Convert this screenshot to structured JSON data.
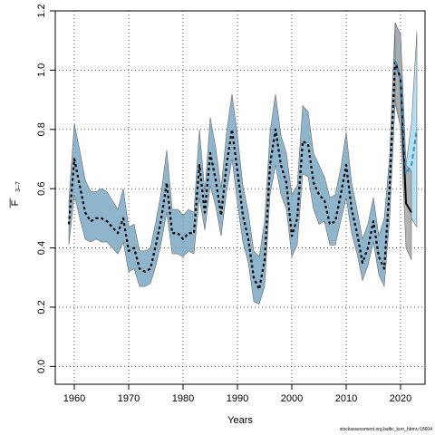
{
  "chart_data": {
    "type": "line",
    "xlabel": "Years",
    "ylabel": "F",
    "ylabel_bar": "—",
    "ylabel_sub": "3–7",
    "xlim": [
      1956.5,
      2024.5
    ],
    "ylim": [
      -0.06,
      1.2
    ],
    "x_ticks": [
      1960,
      1970,
      1980,
      1990,
      2000,
      2010,
      2020
    ],
    "y_ticks": [
      0.0,
      0.2,
      0.4,
      0.6,
      0.8,
      1.0,
      1.2
    ],
    "y_tick_labels": [
      "0.0",
      "0.2",
      "0.4",
      "0.6",
      "0.8",
      "1.0",
      "1.2"
    ],
    "grid": true,
    "colors": {
      "band_assessment": "#7ba8c4",
      "band_forecast": "#a9d8ee",
      "band_recent": "#a6a6a6",
      "line_assessment": "#000000",
      "line_recent": "#000000",
      "line_forecast": "#3a8fc0"
    },
    "series": [
      {
        "style": "band",
        "color_key": "band_assessment",
        "x": [
          1959,
          1960,
          1961,
          1962,
          1963,
          1964,
          1965,
          1966,
          1967,
          1968,
          1969,
          1970,
          1971,
          1972,
          1973,
          1974,
          1975,
          1976,
          1977,
          1978,
          1979,
          1980,
          1981,
          1982,
          1983,
          1984,
          1985,
          1986,
          1987,
          1988,
          1989,
          1990,
          1991,
          1992,
          1993,
          1994,
          1995,
          1996,
          1997,
          1998,
          1999,
          2000,
          2001,
          2002,
          2003,
          2004,
          2005,
          2006,
          2007,
          2008,
          2009,
          2010,
          2011,
          2012,
          2013,
          2014,
          2015,
          2016,
          2017,
          2018,
          2019,
          2020
        ],
        "upper": [
          0.56,
          0.82,
          0.73,
          0.63,
          0.59,
          0.59,
          0.6,
          0.59,
          0.56,
          0.53,
          0.6,
          0.47,
          0.48,
          0.39,
          0.39,
          0.4,
          0.49,
          0.59,
          0.73,
          0.53,
          0.53,
          0.51,
          0.53,
          0.52,
          0.8,
          0.59,
          0.84,
          0.74,
          0.6,
          0.79,
          0.92,
          0.78,
          0.61,
          0.52,
          0.39,
          0.37,
          0.49,
          0.79,
          0.92,
          0.78,
          0.72,
          0.58,
          0.61,
          0.88,
          0.86,
          0.72,
          0.68,
          0.64,
          0.57,
          0.58,
          0.67,
          0.79,
          0.62,
          0.53,
          0.43,
          0.48,
          0.57,
          0.44,
          0.5,
          0.71,
          1.16,
          1.12
        ],
        "lower": [
          0.41,
          0.58,
          0.5,
          0.43,
          0.42,
          0.43,
          0.42,
          0.42,
          0.4,
          0.38,
          0.42,
          0.32,
          0.33,
          0.27,
          0.27,
          0.28,
          0.34,
          0.42,
          0.52,
          0.38,
          0.38,
          0.37,
          0.39,
          0.38,
          0.57,
          0.46,
          0.61,
          0.54,
          0.44,
          0.59,
          0.7,
          0.55,
          0.42,
          0.35,
          0.22,
          0.21,
          0.27,
          0.58,
          0.68,
          0.58,
          0.53,
          0.37,
          0.41,
          0.65,
          0.64,
          0.53,
          0.48,
          0.49,
          0.41,
          0.41,
          0.49,
          0.57,
          0.45,
          0.38,
          0.29,
          0.34,
          0.42,
          0.31,
          0.27,
          0.5,
          0.89,
          0.81
        ]
      },
      {
        "style": "band",
        "color_key": "band_forecast",
        "x": [
          2019,
          2020,
          2021,
          2022,
          2023
        ],
        "upper": [
          1.16,
          1.12,
          0.68,
          0.82,
          1.13
        ],
        "lower": [
          0.89,
          0.81,
          0.57,
          0.5,
          0.47
        ]
      },
      {
        "style": "band",
        "color_key": "band_recent",
        "x": [
          2019,
          2020,
          2021,
          2022
        ],
        "upper": [
          1.16,
          1.12,
          0.68,
          0.66
        ],
        "lower": [
          0.89,
          0.81,
          0.4,
          0.36
        ]
      },
      {
        "style": "dotted",
        "color_key": "line_assessment",
        "x": [
          1959,
          1960,
          1961,
          1962,
          1963,
          1964,
          1965,
          1966,
          1967,
          1968,
          1969,
          1970,
          1971,
          1972,
          1973,
          1974,
          1975,
          1976,
          1977,
          1978,
          1979,
          1980,
          1981,
          1982,
          1983,
          1984,
          1985,
          1986,
          1987,
          1988,
          1989,
          1990,
          1991,
          1992,
          1993,
          1994,
          1995,
          1996,
          1997,
          1998,
          1999,
          2000,
          2001,
          2002,
          2003,
          2004,
          2005,
          2006,
          2007,
          2008,
          2009,
          2010,
          2011,
          2012,
          2013,
          2014,
          2015,
          2016,
          2017,
          2018,
          2019,
          2020
        ],
        "values": [
          0.48,
          0.7,
          0.61,
          0.52,
          0.49,
          0.5,
          0.5,
          0.49,
          0.47,
          0.45,
          0.5,
          0.39,
          0.4,
          0.33,
          0.32,
          0.33,
          0.41,
          0.5,
          0.62,
          0.45,
          0.45,
          0.43,
          0.45,
          0.45,
          0.68,
          0.52,
          0.72,
          0.63,
          0.51,
          0.68,
          0.8,
          0.66,
          0.51,
          0.43,
          0.3,
          0.26,
          0.36,
          0.68,
          0.8,
          0.68,
          0.62,
          0.44,
          0.5,
          0.76,
          0.75,
          0.62,
          0.58,
          0.56,
          0.48,
          0.49,
          0.58,
          0.68,
          0.53,
          0.45,
          0.35,
          0.4,
          0.49,
          0.37,
          0.33,
          0.61,
          1.03,
          0.97
        ]
      },
      {
        "style": "solid",
        "color_key": "line_recent",
        "x": [
          2019,
          2020,
          2021,
          2022
        ],
        "values": [
          1.03,
          0.97,
          0.55,
          0.52
        ]
      },
      {
        "style": "dashed",
        "color_key": "line_forecast",
        "x": [
          2019,
          2020,
          2021,
          2022,
          2023
        ],
        "values": [
          1.03,
          0.97,
          0.65,
          0.68,
          0.8
        ]
      }
    ]
  },
  "credit": "stockassessment.org,baltic_korr_hbmr,r18604"
}
